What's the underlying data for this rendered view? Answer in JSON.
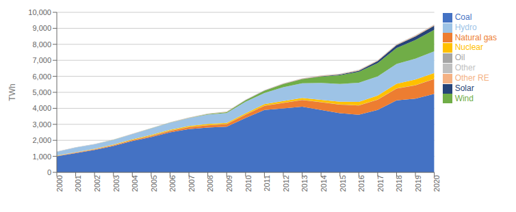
{
  "chart_data": {
    "type": "area",
    "stacked": true,
    "grid": true,
    "legend": "right",
    "ylabel": "TWh",
    "x": [
      2000,
      2001,
      2002,
      2003,
      2004,
      2005,
      2006,
      2007,
      2008,
      2009,
      2010,
      2011,
      2012,
      2013,
      2014,
      2015,
      2016,
      2017,
      2018,
      2019,
      2020
    ],
    "xlim": [
      2000,
      2020
    ],
    "xticks": [
      2000,
      2001,
      2002,
      2003,
      2004,
      2005,
      2006,
      2007,
      2008,
      2009,
      2010,
      2011,
      2012,
      2013,
      2014,
      2015,
      2016,
      2017,
      2018,
      2019,
      2020
    ],
    "ylim": [
      0,
      10000
    ],
    "yticks": [
      0,
      {
        "value": 1000,
        "label": "1,000"
      },
      {
        "value": 2000,
        "label": "2,000"
      },
      {
        "value": 3000,
        "label": "3,000"
      },
      {
        "value": 4000,
        "label": "4,000"
      },
      {
        "value": 5000,
        "label": "5,000"
      },
      {
        "value": 6000,
        "label": "6,000"
      },
      {
        "value": 7000,
        "label": "7,000"
      },
      {
        "value": 8000,
        "label": "8,000"
      },
      {
        "value": 9000,
        "label": "9,000"
      },
      {
        "value": 10000,
        "label": "10,000"
      }
    ],
    "series": [
      {
        "name": "Coal",
        "color": "#4472C4",
        "values": [
          1000,
          1200,
          1400,
          1650,
          1950,
          2200,
          2500,
          2700,
          2800,
          2850,
          3400,
          3900,
          4000,
          4100,
          3900,
          3700,
          3600,
          3900,
          4500,
          4600,
          4900
        ]
      },
      {
        "name": "Natural gas",
        "color": "#ED7D31",
        "values": [
          20,
          25,
          30,
          40,
          55,
          70,
          90,
          120,
          140,
          160,
          200,
          260,
          340,
          420,
          480,
          530,
          580,
          640,
          730,
          840,
          930
        ]
      },
      {
        "name": "Oil",
        "color": "#A5A5A5",
        "values": [
          20,
          20,
          18,
          18,
          18,
          15,
          15,
          15,
          14,
          12,
          12,
          12,
          12,
          12,
          12,
          12,
          12,
          12,
          12,
          12,
          12
        ]
      },
      {
        "name": "Nuclear",
        "color": "#FFC000",
        "values": [
          17,
          17,
          22,
          32,
          39,
          54,
          55,
          62,
          68,
          70,
          74,
          87,
          98,
          111,
          133,
          171,
          213,
          248,
          295,
          349,
          366
        ]
      },
      {
        "name": "Hydro",
        "color": "#9DC3E6",
        "values": [
          222,
          283,
          280,
          284,
          328,
          397,
          435,
          485,
          585,
          616,
          722,
          698,
          872,
          920,
          1064,
          1114,
          1190,
          1194,
          1232,
          1302,
          1355
        ]
      },
      {
        "name": "Wind",
        "color": "#70AD47",
        "values": [
          1,
          1,
          2,
          3,
          4,
          7,
          11,
          20,
          35,
          57,
          94,
          140,
          196,
          257,
          394,
          541,
          687,
          838,
          1001,
          1171,
          1343
        ]
      },
      {
        "name": "Solar",
        "color": "#264478",
        "values": [
          0,
          0,
          0,
          0,
          0,
          0,
          0,
          0,
          0,
          1,
          2,
          6,
          7,
          9,
          25,
          39,
          67,
          118,
          178,
          224,
          261
        ]
      },
      {
        "name": "Other RE",
        "color": "#F4B183",
        "values": [
          5,
          5,
          5,
          5,
          6,
          7,
          8,
          9,
          10,
          12,
          15,
          18,
          20,
          22,
          25,
          28,
          30,
          33,
          36,
          40,
          45
        ]
      },
      {
        "name": "Other",
        "color": "#BFBFBF",
        "values": [
          15,
          15,
          15,
          15,
          16,
          17,
          18,
          19,
          20,
          21,
          22,
          23,
          24,
          25,
          26,
          27,
          28,
          29,
          30,
          31,
          32
        ]
      }
    ]
  }
}
